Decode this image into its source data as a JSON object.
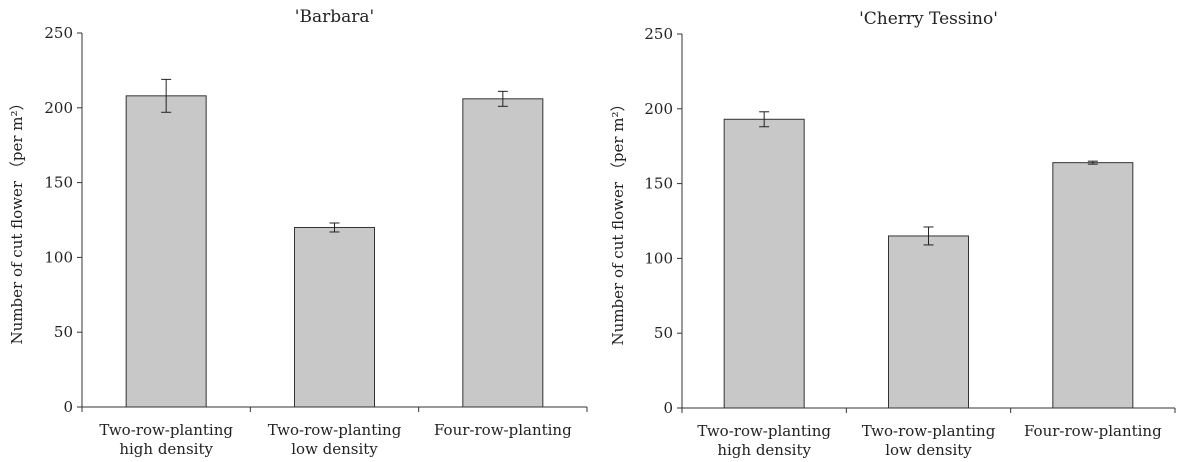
{
  "chart_data": [
    {
      "type": "bar",
      "title": "'Barbara'",
      "ylabel": "Number of cut flower （per m²）",
      "xlabel": "",
      "categories": [
        [
          "Two-row-planting",
          "high density"
        ],
        [
          "Two-row-planting",
          "low density"
        ],
        [
          "Four-row-planting"
        ]
      ],
      "values": [
        208,
        120,
        206
      ],
      "errors": [
        11,
        3,
        5
      ],
      "ylim": [
        0,
        250
      ],
      "yticks": [
        "0",
        "50",
        "100",
        "150",
        "200",
        "250"
      ],
      "grid": false,
      "bar_color": "#c8c8c8"
    },
    {
      "type": "bar",
      "title": "'Cherry Tessino'",
      "ylabel": "Number of cut flower （per m²）",
      "xlabel": "",
      "categories": [
        [
          "Two-row-planting",
          "high density"
        ],
        [
          "Two-row-planting",
          "low density"
        ],
        [
          "Four-row-planting"
        ]
      ],
      "values": [
        193,
        115,
        164
      ],
      "errors": [
        5,
        6,
        1
      ],
      "ylim": [
        0,
        250
      ],
      "yticks": [
        "0",
        "50",
        "100",
        "150",
        "200",
        "250"
      ],
      "grid": false,
      "bar_color": "#c8c8c8"
    }
  ]
}
